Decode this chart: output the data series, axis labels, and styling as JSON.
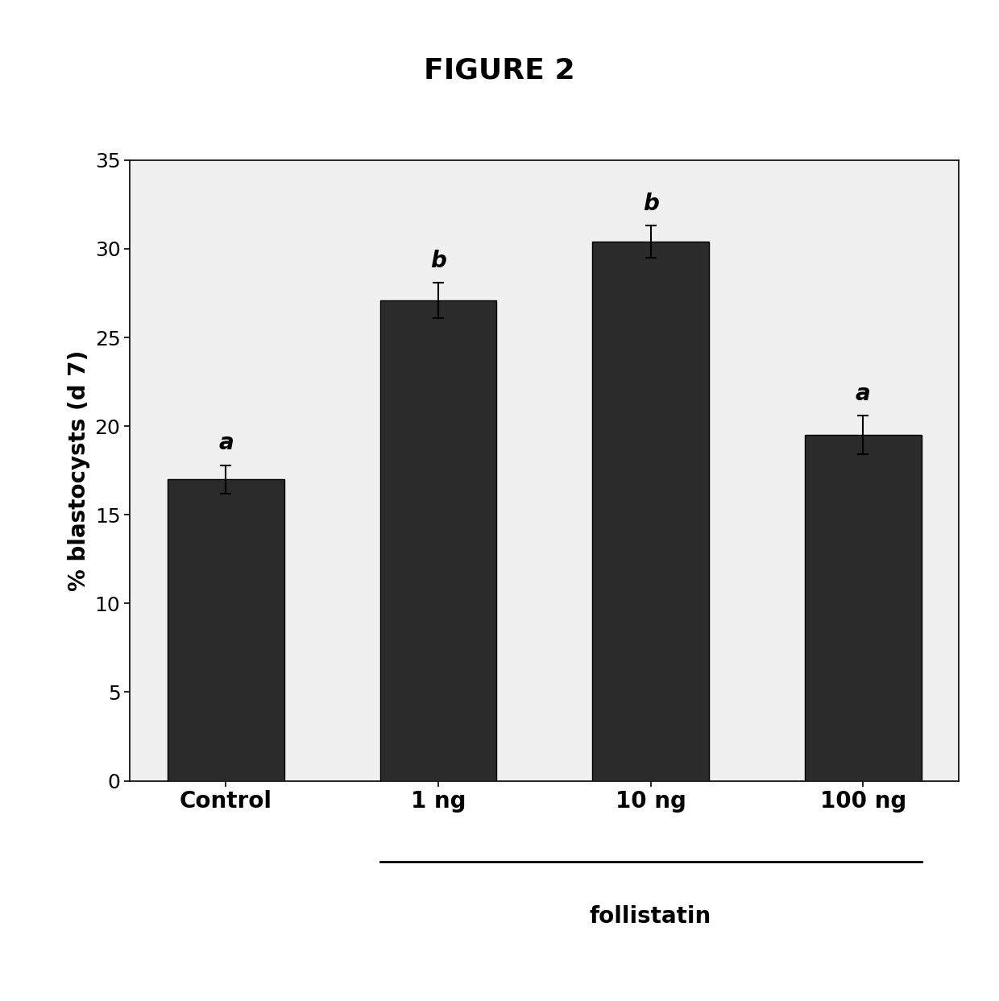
{
  "title": "FIGURE 2",
  "categories": [
    "Control",
    "1 ng",
    "10 ng",
    "100 ng"
  ],
  "values": [
    17.0,
    27.1,
    30.4,
    19.5
  ],
  "errors": [
    0.8,
    1.0,
    0.9,
    1.1
  ],
  "significance_labels": [
    "a",
    "b",
    "b",
    "a"
  ],
  "ylabel": "% blastocysts (d 7)",
  "xlabel_bracket_label": "follistatin",
  "ylim": [
    0,
    35
  ],
  "yticks": [
    0,
    5,
    10,
    15,
    20,
    25,
    30,
    35
  ],
  "bar_color": "#2b2b2b",
  "bar_width": 0.55,
  "background_color": "#f0f0f0",
  "outer_bg": "#ffffff",
  "title_fontsize": 26,
  "axis_label_fontsize": 20,
  "tick_fontsize": 18,
  "sig_label_fontsize": 20,
  "bracket_label_fontsize": 20,
  "xtick_fontsize": 20
}
